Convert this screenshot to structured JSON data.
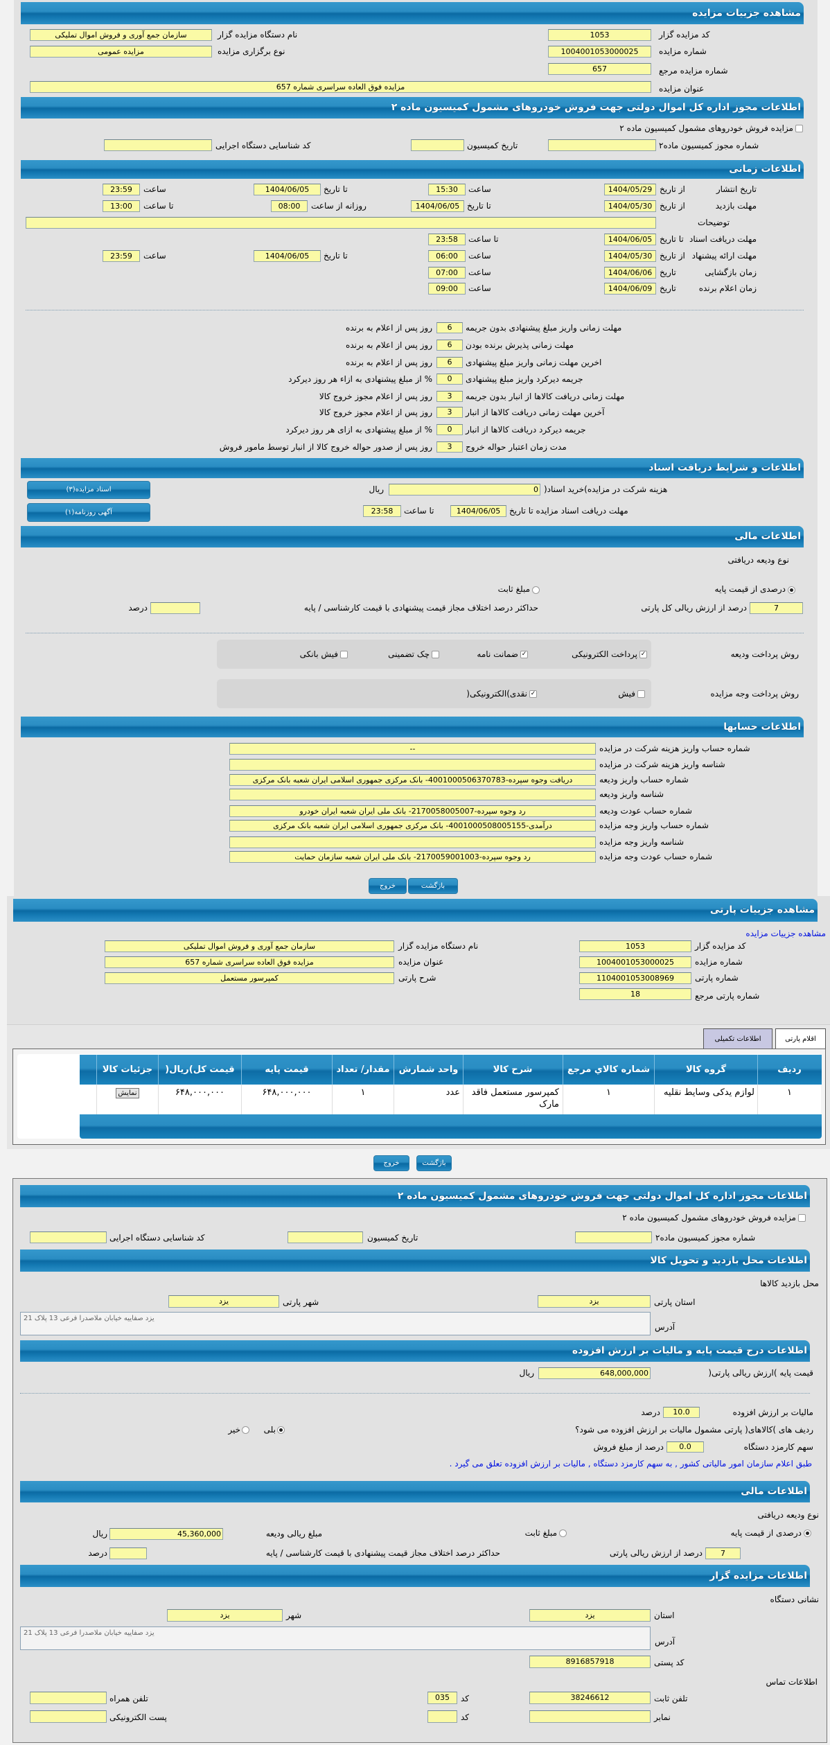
{
  "colors": {
    "header": "#1f86bf",
    "input_bg": "#fafaa6",
    "link": "#0010e0",
    "tab_inactive": "#c8c8e2"
  },
  "auction": {
    "title": "مشاهده جزییات مزایده",
    "code": {
      "label": "کد مزایده گزار",
      "value": "1053"
    },
    "org_name": {
      "label": "نام دستگاه مزایده گزار",
      "value": "سازمان جمع آوری و فروش اموال تملیکی"
    },
    "number": {
      "label": "شماره مزایده",
      "value": "1004001053000025"
    },
    "type": {
      "label": "نوع برگزاری مزایده",
      "value": "مزایده عمومی"
    },
    "ref_number": {
      "label": "شماره مزایده مرجع",
      "value": "657"
    },
    "auction_title": {
      "label": "عنوان مزایده",
      "value": "مزایده فوق العاده سراسری شماره 657"
    }
  },
  "permit": {
    "title": "اطلاعات مجوز اداره کل اموال دولتی جهت فروش خودروهای مشمول کمیسیون ماده ۲",
    "checkbox_label": "مزایده فروش خودروهای مشمول کمیسیون ماده ۲",
    "checked": false,
    "permit_no": {
      "label": "شماره مجوز کمیسیون ماده۲",
      "value": ""
    },
    "commission_date": {
      "label": "تاریخ کمیسیون",
      "value": ""
    },
    "exec_org_code": {
      "label": "کد شناسایی دستگاه اجرایی",
      "value": ""
    }
  },
  "timing": {
    "title": "اطلاعات زمانی",
    "words": {
      "from_date": "از تاریخ",
      "to_date": "تا تاریخ",
      "time": "ساعت",
      "to_time": "تا ساعت",
      "daily_from": "روزانه از ساعت",
      "date": "تاریخ"
    },
    "publish": {
      "label": "تاریخ انتشار",
      "from_date": "1404/05/29",
      "from_time": "15:30",
      "to_date": "1404/06/05",
      "to_time": "23:59"
    },
    "visit": {
      "label": "مهلت بازدید",
      "from_date": "1404/05/30",
      "to_date": "1404/06/05",
      "daily_from": "08:00",
      "daily_to": "13:00"
    },
    "description": {
      "label": "توضیحات",
      "value": ""
    },
    "doc_deadline": {
      "label": "مهلت دریافت اسناد",
      "to_date": "1404/06/05",
      "to_time": "23:58"
    },
    "offer": {
      "label": "مهلت ارائه پیشنهاد",
      "from_date": "1404/05/30",
      "from_time": "06:00",
      "to_date": "1404/06/05",
      "to_time": "23:59"
    },
    "opening": {
      "label": "زمان بازگشایی",
      "date": "1404/06/06",
      "time": "07:00"
    },
    "winner": {
      "label": "زمان اعلام برنده",
      "date": "1404/06/09",
      "time": "09:00"
    }
  },
  "deadlines": [
    {
      "label": "مهلت زمانی واریز مبلغ پیشنهادی بدون جریمه",
      "value": "6",
      "suffix": "روز پس از اعلام به برنده"
    },
    {
      "label": "مهلت زمانی پذیرش برنده بودن",
      "value": "6",
      "suffix": "روز پس از اعلام به برنده"
    },
    {
      "label": "اخرین مهلت زمانی واریز مبلغ پیشنهادی",
      "value": "6",
      "suffix": "روز پس از اعلام به برنده"
    },
    {
      "label": "جریمه دیرکرد واریز مبلغ پیشنهادی",
      "value": "0",
      "suffix": "% از مبلغ پیشنهادی به ازاء هر روز دیرکرد"
    },
    {
      "label": "مهلت زمانی دریافت کالاها از انبار بدون جریمه",
      "value": "3",
      "suffix": "روز پس از اعلام مجوز خروج کالا"
    },
    {
      "label": "آخرین مهلت زمانی دریافت کالاها از انبار",
      "value": "3",
      "suffix": "روز پس از اعلام مجوز خروج کالا"
    },
    {
      "label": "جریمه دیرکرد دریافت کالاها از انبار",
      "value": "0",
      "suffix": "% از مبلغ پیشنهادی به ازای هر روز دیرکرد"
    },
    {
      "label": "مدت زمان اعتبار حواله خروج",
      "value": "3",
      "suffix": "روز پس از صدور حواله خروج کالا از انبار توسط مامور فروش"
    }
  ],
  "documents": {
    "title": "اطلاعات و شرایط دریافت اسناد",
    "fee_label": "هزینه شرکت در مزایده)خرید اسناد(",
    "fee_value": "0",
    "fee_unit": "ریال",
    "deadline_label": "مهلت دریافت اسناد مزایده تا تاریخ",
    "deadline_date": "1404/06/05",
    "to_time_label": "تا ساعت",
    "deadline_time": "23:58",
    "docs_button": "اسناد مزایده(۳)",
    "ad_button": "آگهی روزنامه(۱)"
  },
  "finance": {
    "title": "اطلاعات مالی",
    "deposit_type_label": "نوع ودیعه دریافتی",
    "percent_option": "درصدی از قیمت پایه",
    "fixed_option": "مبلغ ثابت",
    "selected": "percent",
    "percent_value": "7",
    "percent_suffix": "درصد از ارزش ریالی کل پارتی",
    "max_diff_label": "حداکثر درصد اختلاف مجاز قیمت پیشنهادی با قیمت کارشناسی / پایه",
    "max_diff_value": "",
    "percent_unit": "درصد",
    "deposit_payment_label": "روش پرداخت ودیعه",
    "deposit_methods": [
      {
        "label": "پرداخت الکترونیکی",
        "checked": true
      },
      {
        "label": "ضمانت نامه",
        "checked": true
      },
      {
        "label": "چک تضمینی",
        "checked": false
      },
      {
        "label": "فیش بانکی",
        "checked": false
      }
    ],
    "auction_payment_label": "روش پرداخت وجه مزایده",
    "auction_methods": [
      {
        "label": "فیش",
        "checked": false
      },
      {
        "label": "نقدی)الکترونیکی(",
        "checked": true
      }
    ]
  },
  "accounts": {
    "title": "اطلاعات حسابها",
    "rows": [
      {
        "label": "شماره حساب واریز هزینه شرکت در مزایده",
        "value": "--"
      },
      {
        "label": "شناسه واریز هزینه شرکت در مزایده",
        "value": ""
      },
      {
        "label": "شماره حساب واریز ودیعه",
        "value": "دریافت وجوه سپرده-4001000506370783- بانک مرکزی جمهوری اسلامی ایران شعبه بانک مرکزی"
      },
      {
        "label": "شناسه واریز ودیعه",
        "value": ""
      },
      {
        "label": "شماره حساب عودت ودیعه",
        "value": "رد وجوه سپرده-2170058005007- بانک ملی ایران شعبه ایران خودرو"
      },
      {
        "label": "شماره حساب واریز وجه مزایده",
        "value": "درآمدی-4001000508005155- بانک مرکزی جمهوری اسلامی ایران شعبه بانک مرکزی"
      },
      {
        "label": "شناسه واریز وجه مزایده",
        "value": ""
      },
      {
        "label": "شماره حساب عودت وجه مزایده",
        "value": "رد وجوه سپرده-2170059001003- بانک ملی ایران شعبه سازمان حمایت"
      }
    ]
  },
  "buttons": {
    "back": "بازگشت",
    "exit": "خروج"
  },
  "lot": {
    "title": "مشاهده جزییات پارتی",
    "link": "مشاهده جزییات مزایده",
    "code": {
      "label": "کد مزایده گزار",
      "value": "1053"
    },
    "org_name": {
      "label": "نام دستگاه مزایده گزار",
      "value": "سازمان جمع آوری و فروش اموال تملیکی"
    },
    "number": {
      "label": "شماره مزایده",
      "value": "1004001053000025"
    },
    "auction_title": {
      "label": "عنوان مزایده",
      "value": "مزایده فوق العاده سراسری شماره 657"
    },
    "lot_number": {
      "label": "شماره پارتی",
      "value": "1104001053008969"
    },
    "lot_desc": {
      "label": "شرح پارتی",
      "value": "کمپرسور مستعمل"
    },
    "lot_ref": {
      "label": "شماره پارتی مرجع",
      "value": "18"
    },
    "tabs": [
      {
        "label": "اقلام پارتی",
        "active": true
      },
      {
        "label": "اطلاعات تکمیلی",
        "active": false
      }
    ],
    "table": {
      "columns": [
        "ردیف",
        "گروه کالا",
        "شماره کالاي مرجع",
        "شرح کالا",
        "واحد شمارش",
        "مقدار/ تعداد",
        "قیمت پایه",
        "قیمت کل)ریال(",
        "جزئیات کالا"
      ],
      "rows": [
        [
          "۱",
          "لوازم یدکی وسایط نقلیه",
          "۱",
          "کمپرسور مستعمل فاقد مارک",
          "عدد",
          "۱",
          "۶۴۸,۰۰۰,۰۰۰",
          "۶۴۸,۰۰۰,۰۰۰",
          "نمایش"
        ]
      ]
    }
  },
  "permit2": {
    "title": "اطلاعات مجوز اداره کل اموال دولتی جهت فروش خودروهای مشمول کمیسیون ماده ۲",
    "checkbox_label": "مزایده فروش خودروهای مشمول کمیسیون ماده ۲",
    "checked": false,
    "permit_no": {
      "label": "شماره مجوز کمیسیون ماده۲",
      "value": ""
    },
    "commission_date": {
      "label": "تاریخ کمیسیون",
      "value": ""
    },
    "exec_org_code": {
      "label": "کد شناسایی دستگاه اجرایی",
      "value": ""
    }
  },
  "visit_location": {
    "title": "اطلاعات محل بازدید و تحویل کالا",
    "subtitle": "محل بازدید کالاها",
    "province": {
      "label": "استان پارتی",
      "value": "یزد"
    },
    "city": {
      "label": "شهر پارتی",
      "value": "یزد"
    },
    "address": {
      "label": "آدرس",
      "value": "یزد صفاییه خیابان ملاصدرا فرعی 13 پلاک 21"
    }
  },
  "pricing": {
    "title": "اطلاعات درج قیمت پایه و مالیات بر ارزش افزوده",
    "base_price_label": "قیمت پایه )ارزش ریالی پارتی(",
    "base_price": "648,000,000",
    "unit": "ریال",
    "vat_label": "مالیات بر ارزش افزوده",
    "vat": "10.0",
    "percent": "درصد",
    "vat_question": "ردیف های )کالاهای( پارتی مشمول مالیات بر ارزش افزوده می شود؟",
    "yes": "بلی",
    "no": "خیر",
    "vat_applies": true,
    "fee_label": "سهم کارمزد دستگاه",
    "fee": "0.0",
    "fee_suffix": "درصد از مبلغ فروش",
    "notice": "طبق اعلام سازمان امور مالیاتی کشور , به سهم کارمزد دستگاه , مالیات بر ارزش افزوده تعلق می گیرد ."
  },
  "finance2": {
    "title": "اطلاعات مالی",
    "deposit_type_label": "نوع ودیعه دریافتی",
    "percent_option": "درصدی از قیمت پایه",
    "fixed_option": "مبلغ ثابت",
    "selected": "percent",
    "deposit_amount_label": "مبلغ ریالی ودیعه",
    "deposit_amount": "45,360,000",
    "unit": "ریال",
    "percent_value": "7",
    "percent_suffix": "درصد از ارزش ریالی پارتی",
    "max_diff_label": "حداکثر درصد اختلاف مجاز قیمت پیشنهادی با قیمت کارشناسی / پایه",
    "max_diff_value": "",
    "percent_unit": "درصد"
  },
  "auctioneer": {
    "title": "اطلاعات مزایده گزار",
    "address_title": "نشانی دستگاه",
    "province": {
      "label": "استان",
      "value": "یزد"
    },
    "city": {
      "label": "شهر",
      "value": "یزد"
    },
    "address": {
      "label": "آدرس",
      "value": "یزد صفاییه خیابان ملاصدرا فرعی 13 پلاک 21"
    },
    "postal": {
      "label": "کد پستی",
      "value": "8916857918"
    },
    "contact_title": "اطلاعات تماس",
    "phone": {
      "label": "تلفن ثابت",
      "value": "38246612"
    },
    "phone_code": {
      "label": "کد",
      "value": "035"
    },
    "fax": {
      "label": "نمابر",
      "value": ""
    },
    "fax_code": {
      "label": "کد",
      "value": ""
    },
    "mobile": {
      "label": "تلفن همراه",
      "value": ""
    },
    "email": {
      "label": "پست الکترونیکی",
      "value": ""
    }
  }
}
